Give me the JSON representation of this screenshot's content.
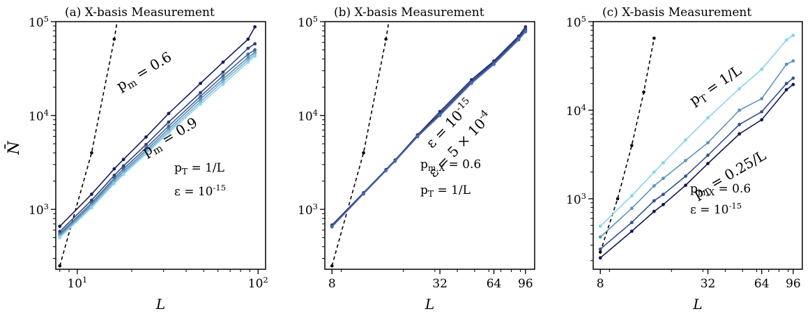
{
  "figure": {
    "ylabel": "N̄"
  },
  "chart_data": [
    {
      "type": "line",
      "panel_label": "(a) X-basis Measurement",
      "xlabel": "L",
      "ylabel": "N̄",
      "xscale": "log",
      "yscale": "log",
      "xlim": [
        7.6,
        110
      ],
      "ylim": [
        230,
        100000
      ],
      "x_ticks": [
        10,
        100
      ],
      "x_tick_labels": [
        "10^1",
        "10^2"
      ],
      "y_ticks": [
        1000,
        10000,
        100000
      ],
      "y_tick_labels": [
        "10^3",
        "10^4",
        "10^5"
      ],
      "x": [
        8,
        12,
        16,
        18,
        24,
        32,
        48,
        64,
        88,
        96
      ],
      "series": [
        {
          "name": "p_m = 0.6",
          "color": "#141b5c",
          "values": [
            660,
            1450,
            2700,
            3400,
            5900,
            10500,
            22000,
            37000,
            65000,
            88000
          ]
        },
        {
          "values": [
            580,
            1250,
            2300,
            2900,
            4900,
            8500,
            17500,
            29000,
            52000,
            58000
          ]
        },
        {
          "values": [
            550,
            1170,
            2150,
            2700,
            4500,
            7700,
            16000,
            26500,
            45000,
            50000
          ]
        },
        {
          "values": [
            530,
            1120,
            2050,
            2550,
            4250,
            7200,
            15000,
            24500,
            41500,
            47000
          ]
        },
        {
          "values": [
            515,
            1080,
            1950,
            2450,
            4050,
            6800,
            14000,
            23000,
            39000,
            45000
          ]
        },
        {
          "name": "p_m = 0.9",
          "color": "#8fd6ee",
          "values": [
            500,
            1040,
            1880,
            2350,
            3900,
            6500,
            13200,
            21500,
            37000,
            43000
          ]
        }
      ],
      "reference": {
        "style": "dashed",
        "color": "#000000",
        "x": [
          8,
          12,
          16,
          18
        ],
        "values": [
          250,
          4000,
          65000,
          260000
        ]
      },
      "annotations": {
        "series_top": "p_m = 0.6",
        "series_bottom": "p_m = 0.9",
        "param1": "p_T = 1/L",
        "param2": "ε = 10^{-15}"
      }
    },
    {
      "type": "line",
      "panel_label": "(b) X-basis Measurement",
      "xlabel": "L",
      "xscale": "log",
      "yscale": "log",
      "xlim": [
        7.3,
        108
      ],
      "ylim": [
        230,
        100000
      ],
      "x_ticks": [
        8,
        32,
        64,
        96
      ],
      "x_tick_labels": [
        "8",
        "32",
        "64",
        "96"
      ],
      "y_ticks": [
        1000,
        10000,
        100000
      ],
      "y_tick_labels": [
        "10^3",
        "10^4",
        "10^5"
      ],
      "x": [
        8,
        12,
        16,
        18,
        24,
        32,
        48,
        64,
        88,
        96
      ],
      "series": [
        {
          "name": "ε = 10^{-15}",
          "color": "#1f2a6e",
          "values": [
            680,
            1500,
            2650,
            3350,
            6200,
            11000,
            24000,
            38000,
            70000,
            88000
          ]
        },
        {
          "values": [
            670,
            1480,
            2620,
            3300,
            6100,
            10500,
            23000,
            37000,
            68000,
            84000
          ]
        },
        {
          "values": [
            660,
            1470,
            2600,
            3280,
            6000,
            10200,
            22500,
            36000,
            66000,
            80000
          ]
        },
        {
          "name": "ε = 5 × 10^{-4}",
          "color": "#4b6aa8",
          "values": [
            650,
            1460,
            2580,
            3250,
            5950,
            10000,
            22000,
            35000,
            64000,
            78000
          ]
        }
      ],
      "reference": {
        "style": "dashed",
        "color": "#000000",
        "x": [
          8,
          12,
          16,
          18
        ],
        "values": [
          250,
          4000,
          65000,
          260000
        ]
      },
      "annotations": {
        "series_top": "ε = 10^{-15}",
        "series_bottom": "ε = 5 × 10^{-4}",
        "param1": "p_{m,X} = 0.6",
        "param2": "p_T = 1/L"
      }
    },
    {
      "type": "line",
      "panel_label": "(c) X-basis Measurement",
      "xlabel": "L",
      "xscale": "log",
      "yscale": "log",
      "xlim": [
        7.3,
        108
      ],
      "ylim": [
        160,
        100000
      ],
      "x_ticks": [
        8,
        32,
        64,
        96
      ],
      "x_tick_labels": [
        "8",
        "32",
        "64",
        "96"
      ],
      "y_ticks": [
        1000,
        10000,
        100000
      ],
      "y_tick_labels": [
        "10^3",
        "10^4",
        "10^5"
      ],
      "x": [
        8,
        12,
        16,
        18,
        24,
        32,
        48,
        64,
        88,
        96
      ],
      "series": [
        {
          "name": "p_T = 1/L",
          "color": "#88d4ec",
          "values": [
            490,
            1080,
            2000,
            2550,
            4600,
            8200,
            17500,
            29000,
            62000,
            70000
          ]
        },
        {
          "color": "#5b93bb",
          "values": [
            370,
            780,
            1400,
            1700,
            2700,
            4300,
            10000,
            13500,
            33000,
            36000
          ]
        },
        {
          "color": "#33518e",
          "values": [
            270,
            540,
            950,
            1120,
            1800,
            3100,
            6900,
            9600,
            20000,
            23000
          ]
        },
        {
          "name": "p_T = 0.25/L",
          "color": "#101755",
          "values": [
            215,
            430,
            720,
            860,
            1420,
            2500,
            5400,
            7800,
            17000,
            19500
          ]
        }
      ],
      "reference": {
        "style": "dashed",
        "color": "#000000",
        "x": [
          8,
          10,
          12,
          14,
          16
        ],
        "values": [
          250,
          1000,
          4000,
          16000,
          65000
        ]
      },
      "annotations": {
        "series_top": "p_T = 1/L",
        "series_bottom": "p_T = 0.25/L",
        "param1": "p_{m,X} = 0.6",
        "param2": "ε = 10^{-15}"
      }
    }
  ]
}
